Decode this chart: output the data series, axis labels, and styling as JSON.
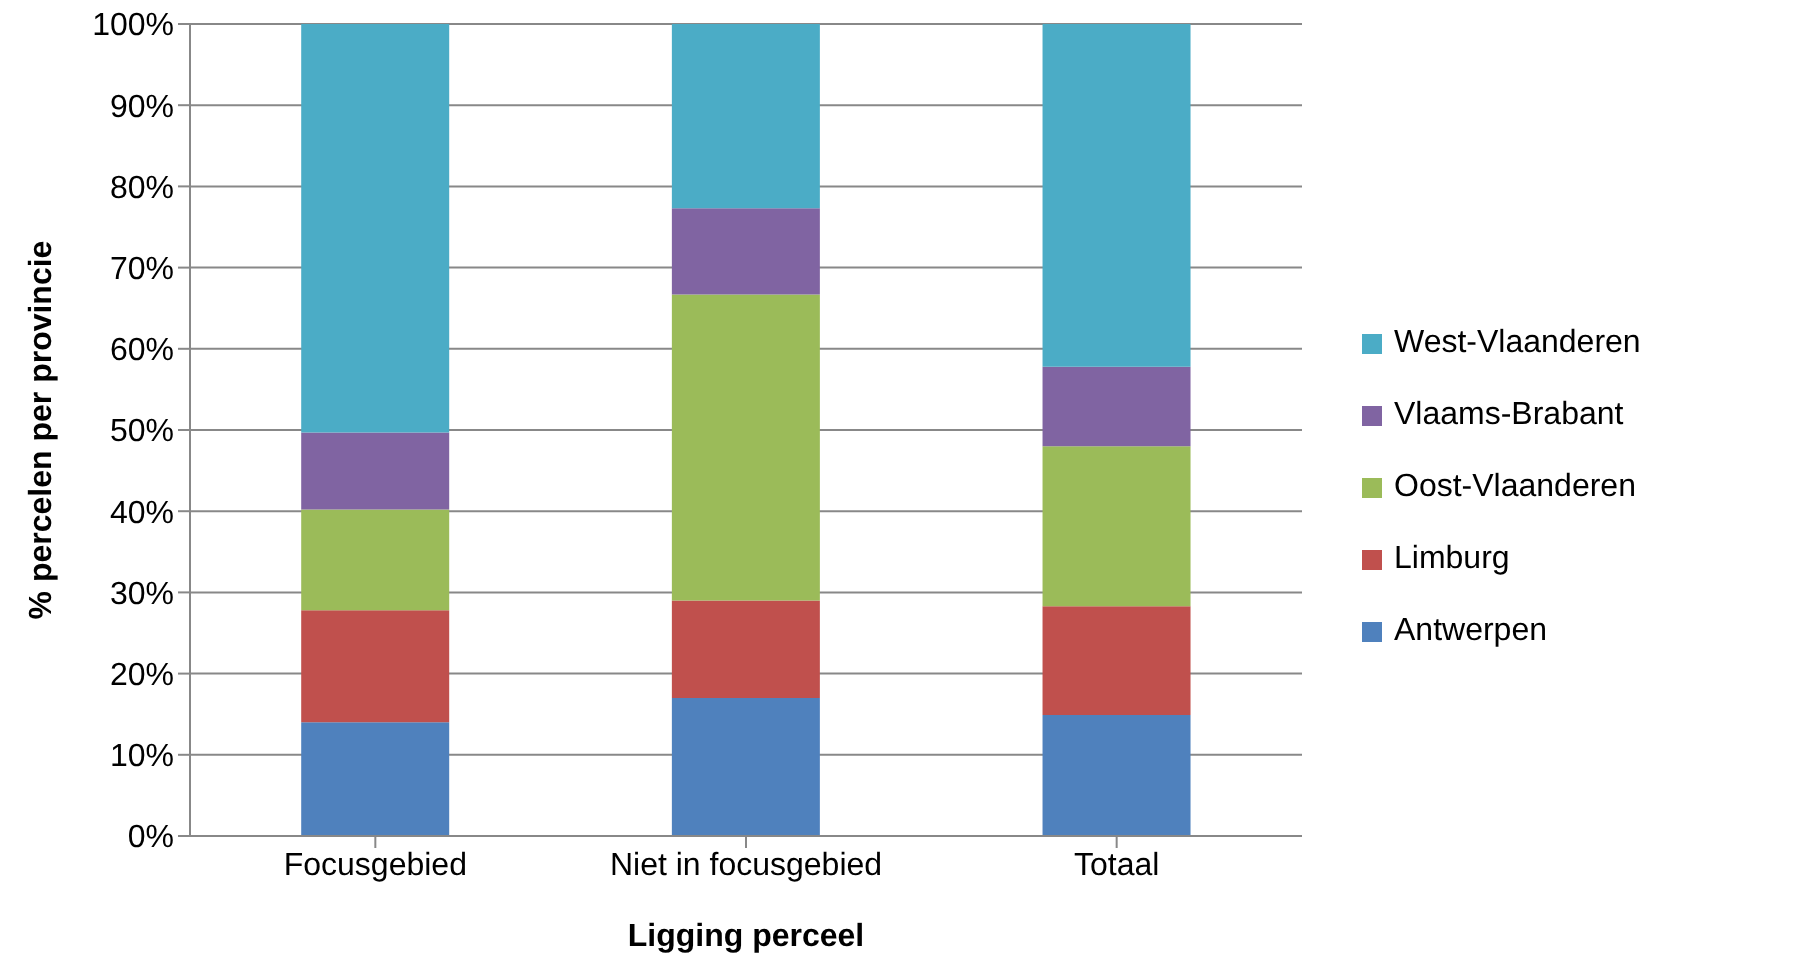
{
  "chart_data": {
    "type": "bar",
    "stacked": true,
    "xlabel": "Ligging perceel",
    "ylabel": "% percelen per provincie",
    "categories": [
      "Focusgebied",
      "Niet in focusgebied",
      "Totaal"
    ],
    "series": [
      {
        "name": "Antwerpen",
        "color": "#4f81bd",
        "values": [
          14,
          17,
          14.9
        ]
      },
      {
        "name": "Limburg",
        "color": "#c0504d",
        "values": [
          13.8,
          12,
          13.4
        ]
      },
      {
        "name": "Oost-Vlaanderen",
        "color": "#9bbb59",
        "values": [
          12.4,
          37.7,
          19.7
        ]
      },
      {
        "name": "Vlaams-Brabant",
        "color": "#8064a2",
        "values": [
          9.5,
          10.6,
          9.8
        ]
      },
      {
        "name": "West-Vlaanderen",
        "color": "#4bacc6",
        "values": [
          50.3,
          22.7,
          42.2
        ]
      }
    ],
    "ylim": [
      0,
      100
    ],
    "yticks": [
      {
        "value": 0,
        "label": "0%"
      },
      {
        "value": 10,
        "label": "10%"
      },
      {
        "value": 20,
        "label": "20%"
      },
      {
        "value": 30,
        "label": "30%"
      },
      {
        "value": 40,
        "label": "40%"
      },
      {
        "value": 50,
        "label": "50%"
      },
      {
        "value": 60,
        "label": "60%"
      },
      {
        "value": 70,
        "label": "70%"
      },
      {
        "value": 80,
        "label": "80%"
      },
      {
        "value": 90,
        "label": "90%"
      },
      {
        "value": 100,
        "label": "100%"
      }
    ],
    "grid": "y",
    "legend": "right"
  }
}
